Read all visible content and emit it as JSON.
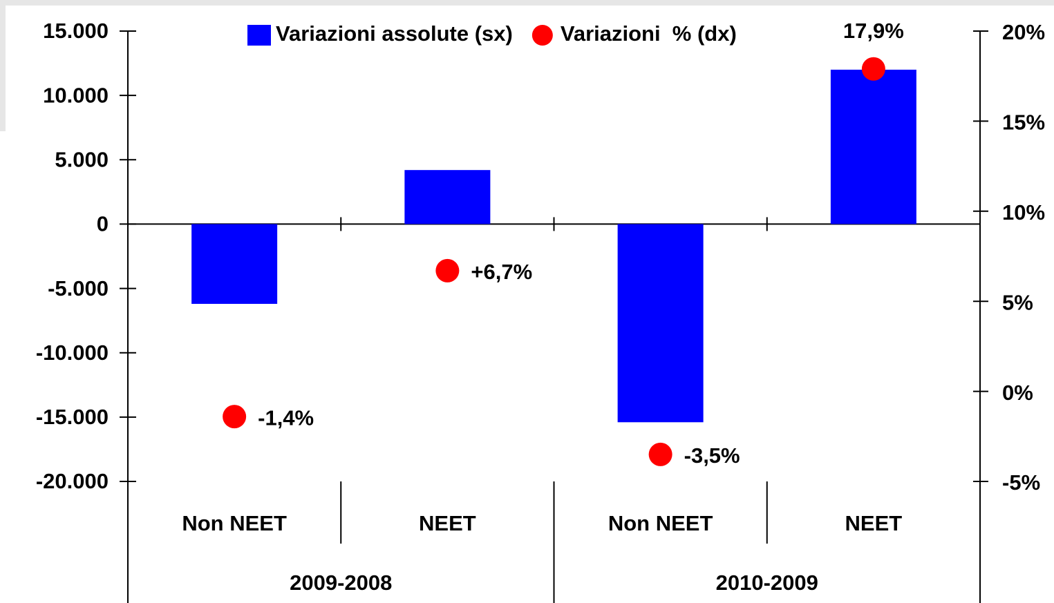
{
  "chart_data": {
    "type": "bar",
    "categories": [
      "Non NEET",
      "NEET",
      "Non NEET",
      "NEET"
    ],
    "category_groups": [
      "2009-2008",
      "2010-2009"
    ],
    "series": [
      {
        "name": "Variazioni assolute (sx)",
        "type": "bar",
        "color": "#0000ff",
        "values": [
          -6200,
          4200,
          -15400,
          12000
        ]
      },
      {
        "name": "Variazioni  % (dx)",
        "type": "scatter",
        "axis": "y2",
        "color": "#ff0000",
        "values": [
          -1.4,
          6.7,
          -3.5,
          17.9
        ],
        "value_labels": [
          "-1,4%",
          "+6,7%",
          "-3,5%",
          "17,9%"
        ]
      }
    ],
    "ylim": [
      -20000,
      15000
    ],
    "yticks": [
      {
        "value": -20000,
        "label": "-20.000"
      },
      {
        "value": -15000,
        "label": "-15.000"
      },
      {
        "value": -10000,
        "label": "-10.000"
      },
      {
        "value": -5000,
        "label": "-5.000"
      },
      0,
      {
        "value": 5000,
        "label": "5.000"
      },
      {
        "value": 10000,
        "label": "10.000"
      },
      {
        "value": 15000,
        "label": "15.000"
      }
    ],
    "y2lim": [
      -5,
      20
    ],
    "y2ticks": [
      {
        "value": -5,
        "label": "-5%"
      },
      {
        "value": 0,
        "label": "0%"
      },
      {
        "value": 5,
        "label": "5%"
      },
      {
        "value": 10,
        "label": "10%"
      },
      {
        "value": 15,
        "label": "15%"
      },
      {
        "value": 20,
        "label": "20%"
      }
    ],
    "legend": "top"
  }
}
